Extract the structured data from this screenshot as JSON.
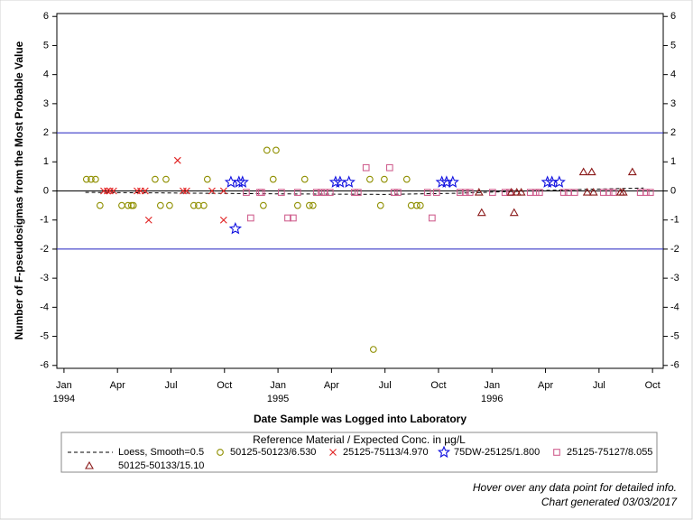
{
  "chart_data": {
    "type": "scatter",
    "ylabel": "Number of F-pseudosigmas from the Most Probable Value",
    "xlabel": "Date Sample was Logged into Laboratory",
    "legend_title": "Reference Material / Expected Conc. in µg/L",
    "notes": [
      "Hover over any data point for detailed info.",
      "Chart generated 03/03/2017"
    ],
    "ylim": [
      -6.1,
      6.1
    ],
    "yticks": [
      -6,
      -5,
      -4,
      -3,
      -2,
      -1,
      0,
      1,
      2,
      3,
      4,
      5,
      6
    ],
    "xlim": [
      -0.4,
      33.6
    ],
    "xticks": [
      {
        "value": 0,
        "label": [
          "Jan",
          "1994"
        ]
      },
      {
        "value": 3,
        "label": [
          "Apr"
        ]
      },
      {
        "value": 6,
        "label": [
          "Jul"
        ]
      },
      {
        "value": 9,
        "label": [
          "Oct"
        ]
      },
      {
        "value": 12,
        "label": [
          "Jan",
          "1995"
        ]
      },
      {
        "value": 15,
        "label": [
          "Apr"
        ]
      },
      {
        "value": 18,
        "label": [
          "Jul"
        ]
      },
      {
        "value": 21,
        "label": [
          "Oct"
        ]
      },
      {
        "value": 24,
        "label": [
          "Jan",
          "1996"
        ]
      },
      {
        "value": 27,
        "label": [
          "Apr"
        ]
      },
      {
        "value": 30,
        "label": [
          "Jul"
        ]
      },
      {
        "value": 33,
        "label": [
          "Oct"
        ]
      }
    ],
    "hlines": [
      {
        "value": 2,
        "color": "#2020c0"
      },
      {
        "value": 0,
        "color": "#000000"
      },
      {
        "value": -2,
        "color": "#2020c0"
      }
    ],
    "loess": {
      "name": "Loess, Smooth=0.5",
      "color": "#000000",
      "x": [
        1.2,
        6,
        12,
        18,
        22,
        26,
        29,
        32.5
      ],
      "values": [
        -0.05,
        -0.07,
        -0.1,
        -0.12,
        -0.08,
        0,
        0.05,
        0.1
      ]
    },
    "series": [
      {
        "name": "50125-50123/6.530",
        "marker": "circle",
        "color": "#8f8f00",
        "x": [
          1.26,
          1.52,
          1.77,
          2.02,
          3.24,
          3.59,
          3.79,
          3.89,
          5.11,
          5.41,
          5.72,
          5.92,
          7.28,
          7.54,
          7.84,
          8.04,
          11.18,
          11.38,
          11.73,
          11.89,
          13.1,
          13.5,
          13.76,
          13.96,
          17.15,
          17.35,
          17.75,
          17.96,
          19.22,
          19.47,
          19.78,
          19.98
        ],
        "values": [
          0.4,
          0.4,
          0.4,
          -0.5,
          -0.5,
          -0.5,
          -0.5,
          -0.5,
          0.4,
          -0.5,
          0.4,
          -0.5,
          -0.5,
          -0.5,
          -0.5,
          0.4,
          -0.5,
          1.4,
          0.4,
          1.4,
          -0.5,
          0.4,
          -0.5,
          -0.5,
          0.4,
          -5.45,
          -0.5,
          0.4,
          0.4,
          -0.5,
          -0.5,
          -0.5
        ]
      },
      {
        "name": "25125-75113/4.970",
        "marker": "x",
        "color": "#e02020",
        "x": [
          2.23,
          2.43,
          2.58,
          2.78,
          4.1,
          4.3,
          4.55,
          4.75,
          6.37,
          6.68,
          6.88,
          8.3,
          8.95,
          8.95
        ],
        "values": [
          0,
          0,
          0,
          0,
          0,
          0,
          0,
          -1,
          1.05,
          0,
          0,
          0,
          -1,
          0
        ]
      },
      {
        "name": "75DW-25125/1.800",
        "marker": "star",
        "color": "#1010e0",
        "x": [
          9.36,
          9.61,
          9.81,
          10.01,
          15.23,
          15.48,
          15.98,
          21.19,
          21.45,
          21.8,
          27.11,
          27.36,
          27.77
        ],
        "values": [
          0.3,
          -1.3,
          0.3,
          0.3,
          0.3,
          0.3,
          0.3,
          0.3,
          0.3,
          0.3,
          0.3,
          0.3,
          0.3
        ]
      },
      {
        "name": "25125-75127/8.055",
        "marker": "square",
        "color": "#d0608f",
        "x": [
          10.22,
          10.47,
          10.98,
          11.08,
          12.19,
          12.55,
          12.85,
          13.1,
          14.16,
          14.42,
          14.62,
          14.92,
          16.29,
          16.49,
          16.94,
          18.26,
          18.51,
          18.72,
          20.38,
          20.64,
          20.89,
          22.21,
          22.51,
          22.76,
          24.03,
          24.73,
          24.99,
          26.15,
          26.45,
          26.66,
          28.02,
          28.27,
          28.63,
          30.25,
          30.55,
          30.8,
          32.32,
          32.63,
          32.88
        ],
        "values": [
          -0.05,
          -0.93,
          -0.05,
          -0.05,
          -0.05,
          -0.93,
          -0.93,
          -0.05,
          -0.05,
          -0.05,
          -0.05,
          -0.05,
          -0.05,
          -0.05,
          0.8,
          0.8,
          -0.05,
          -0.05,
          -0.05,
          -0.93,
          -0.05,
          -0.05,
          -0.05,
          -0.05,
          -0.05,
          -0.05,
          -0.05,
          -0.05,
          -0.05,
          -0.05,
          -0.05,
          -0.05,
          -0.05,
          -0.05,
          -0.05,
          -0.05,
          -0.05,
          -0.05,
          -0.05
        ]
      },
      {
        "name": "50125-50133/15.10",
        "marker": "triangle",
        "color": "#8b1a1a",
        "x": [
          23.27,
          23.42,
          25.08,
          25.24,
          25.39,
          25.64,
          29.13,
          29.34,
          29.59,
          29.69,
          31.21,
          31.36,
          31.87
        ],
        "values": [
          -0.05,
          -0.75,
          -0.05,
          -0.75,
          -0.05,
          -0.05,
          0.65,
          -0.05,
          0.65,
          -0.05,
          -0.05,
          -0.05,
          0.65
        ]
      }
    ]
  }
}
